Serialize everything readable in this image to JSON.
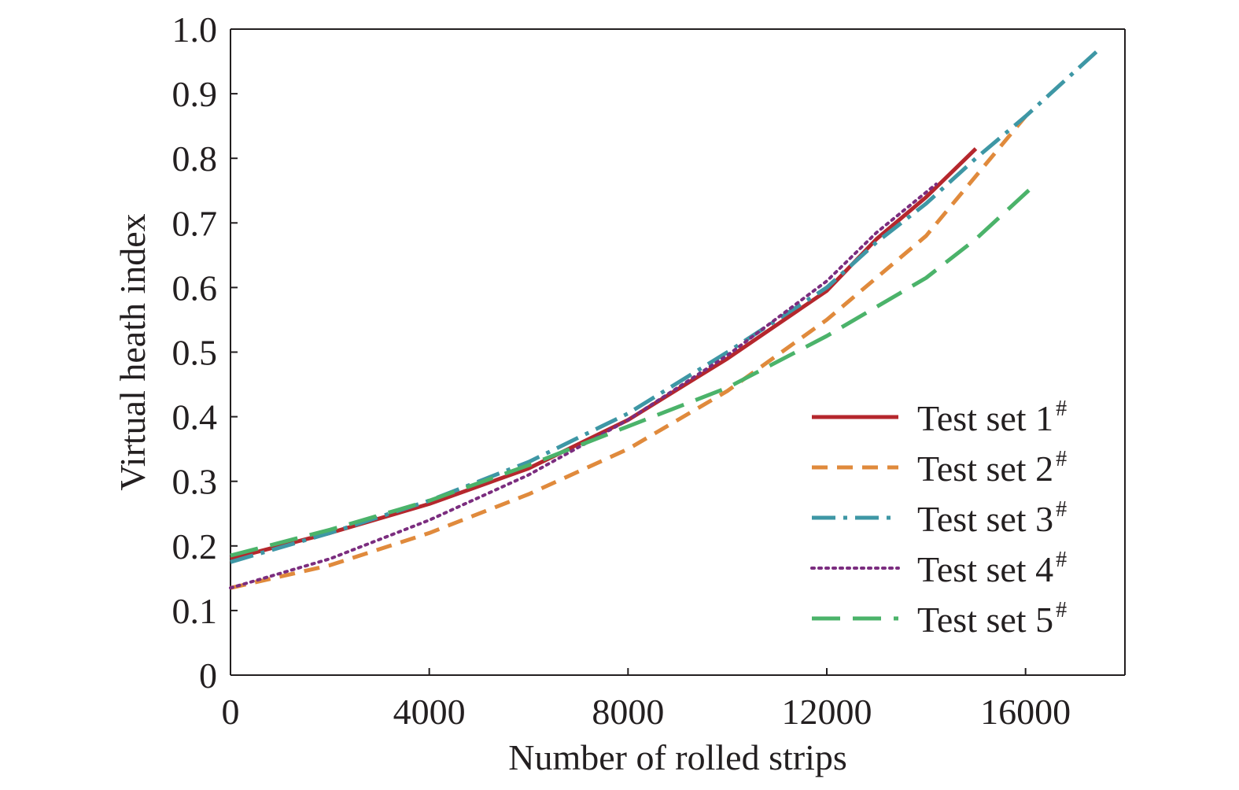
{
  "chart_data": {
    "type": "line",
    "title": "",
    "xlabel": "Number of rolled strips",
    "ylabel": "Virtual heath index",
    "xlim": [
      0,
      18000
    ],
    "ylim": [
      0,
      1.0
    ],
    "x_ticks": [
      "0",
      "4000",
      "8000",
      "12000",
      "16000"
    ],
    "y_ticks": [
      "0",
      "0.1",
      "0.2",
      "0.3",
      "0.4",
      "0.5",
      "0.6",
      "0.7",
      "0.8",
      "0.9",
      "1.0"
    ],
    "grid": false,
    "legend_position": "bottom-right",
    "series": [
      {
        "name": "Test set 1",
        "legend_superscript": "#",
        "color": "#b5272d",
        "dash": "solid",
        "x": [
          0,
          2000,
          4000,
          6000,
          8000,
          10000,
          12000,
          13000,
          14000,
          15000
        ],
        "y": [
          0.18,
          0.22,
          0.265,
          0.32,
          0.395,
          0.49,
          0.595,
          0.675,
          0.74,
          0.815
        ]
      },
      {
        "name": "Test set 2",
        "legend_superscript": "#",
        "color": "#e08a3c",
        "dash": "dashed",
        "x": [
          0,
          2000,
          4000,
          6000,
          8000,
          10000,
          12000,
          14000,
          16000
        ],
        "y": [
          0.135,
          0.17,
          0.22,
          0.28,
          0.35,
          0.44,
          0.55,
          0.68,
          0.865
        ]
      },
      {
        "name": "Test set 3",
        "legend_superscript": "#",
        "color": "#3e97a5",
        "dash": "dashdot",
        "x": [
          0,
          2000,
          4000,
          6000,
          8000,
          10000,
          12000,
          13000,
          14000,
          15000,
          16000,
          17500
        ],
        "y": [
          0.175,
          0.22,
          0.27,
          0.33,
          0.405,
          0.5,
          0.6,
          0.67,
          0.73,
          0.8,
          0.865,
          0.97
        ]
      },
      {
        "name": "Test set 4",
        "legend_superscript": "#",
        "color": "#7b2d7f",
        "dash": "dotted",
        "x": [
          0,
          2000,
          4000,
          6000,
          8000,
          10000,
          12000,
          13000,
          14200
        ],
        "y": [
          0.135,
          0.18,
          0.24,
          0.31,
          0.395,
          0.495,
          0.61,
          0.685,
          0.76
        ]
      },
      {
        "name": "Test set 5",
        "legend_superscript": "#",
        "color": "#4bb36a",
        "dash": "longdash",
        "x": [
          0,
          2000,
          4000,
          6000,
          8000,
          10000,
          12000,
          14000,
          15000,
          16200
        ],
        "y": [
          0.185,
          0.225,
          0.27,
          0.325,
          0.385,
          0.445,
          0.525,
          0.615,
          0.675,
          0.76
        ]
      }
    ]
  }
}
